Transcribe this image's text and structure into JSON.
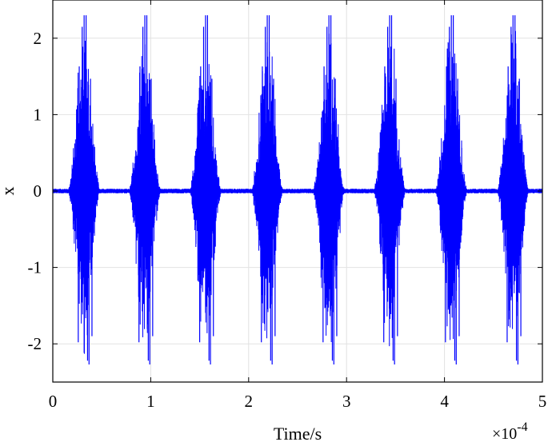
{
  "chart_data": {
    "type": "line",
    "xlabel": "Time/s",
    "ylabel": "x",
    "x_multiplier": "×10",
    "x_exponent": "-4",
    "xlim": [
      0,
      5
    ],
    "ylim": [
      -2.5,
      2.5
    ],
    "x_tick_labels": [
      "0",
      "1",
      "2",
      "3",
      "4",
      "5"
    ],
    "x_tick_values": [
      0,
      1,
      2,
      3,
      4,
      5
    ],
    "y_tick_labels": [
      "-2",
      "-1",
      "0",
      "1",
      "2"
    ],
    "y_tick_values": [
      -2,
      -1,
      0,
      1,
      2
    ],
    "grid": true,
    "line_color": "#0000ff",
    "baseline_amplitude": 0.03,
    "burst_centers": [
      0.32,
      0.94,
      1.56,
      2.19,
      2.82,
      3.44,
      4.07,
      4.7
    ],
    "burst_half_width": 0.17,
    "burst_peak_amplitude": 2.3,
    "burst_spikes": [
      {
        "dx": -0.06,
        "y": -1.98
      },
      {
        "dx": -0.05,
        "y": 1.63
      },
      {
        "dx": -0.02,
        "y": 2.15
      },
      {
        "dx": 0.0,
        "y": 2.3
      },
      {
        "dx": 0.02,
        "y": 2.3
      },
      {
        "dx": 0.035,
        "y": -2.22
      },
      {
        "dx": 0.05,
        "y": -2.27
      },
      {
        "dx": 0.065,
        "y": 1.47
      },
      {
        "dx": 0.08,
        "y": -1.9
      }
    ]
  }
}
